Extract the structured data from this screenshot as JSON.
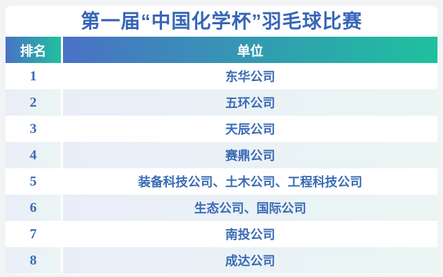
{
  "page": {
    "background": "#f2f3f5"
  },
  "card": {
    "background": "#ffffff"
  },
  "title": {
    "text": "第一届“中国化学杯”羽毛球比赛",
    "color": "#3765b8"
  },
  "header": {
    "rank_label": "排名",
    "unit_label": "单位",
    "gradient_start": "#4a71c6",
    "gradient_end": "#1ec19e",
    "text_color": "#ffffff"
  },
  "table": {
    "row_text_color": "#3a6bb5",
    "even_row_gradient_start": "#e9edf8",
    "even_row_gradient_end": "#ebf6f4",
    "odd_row_background": "#ffffff",
    "rows": [
      {
        "rank": "1",
        "unit": "东华公司"
      },
      {
        "rank": "2",
        "unit": "五环公司"
      },
      {
        "rank": "3",
        "unit": "天辰公司"
      },
      {
        "rank": "4",
        "unit": "赛鼎公司"
      },
      {
        "rank": "5",
        "unit": "装备科技公司、土木公司、工程科技公司"
      },
      {
        "rank": "6",
        "unit": "生态公司、国际公司"
      },
      {
        "rank": "7",
        "unit": "南投公司"
      },
      {
        "rank": "8",
        "unit": "成达公司"
      }
    ]
  }
}
